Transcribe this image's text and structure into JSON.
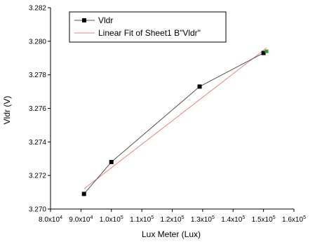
{
  "chart_data": {
    "type": "scatter",
    "xlabel": "Lux Meter (Lux)",
    "ylabel": "Vldr (V)",
    "xlim": [
      80000,
      160000
    ],
    "ylim": [
      3.27,
      3.282
    ],
    "xticks": [
      80000,
      90000,
      100000,
      110000,
      120000,
      130000,
      140000,
      150000,
      160000
    ],
    "xtick_labels": [
      {
        "mant": "8.0x10",
        "exp": "4"
      },
      {
        "mant": "9.0x10",
        "exp": "4"
      },
      {
        "mant": "1.0x10",
        "exp": "5"
      },
      {
        "mant": "1.1x10",
        "exp": "5"
      },
      {
        "mant": "1.2x10",
        "exp": "5"
      },
      {
        "mant": "1.3x10",
        "exp": "5"
      },
      {
        "mant": "1.4x10",
        "exp": "5"
      },
      {
        "mant": "1.5x10",
        "exp": "5"
      },
      {
        "mant": "1.6x10",
        "exp": "5"
      }
    ],
    "yticks": [
      3.27,
      3.272,
      3.274,
      3.276,
      3.278,
      3.28,
      3.282
    ],
    "ytick_labels": [
      "3.270",
      "3.272",
      "3.274",
      "3.276",
      "3.278",
      "3.280",
      "3.282"
    ],
    "grid": false,
    "legend_position": "top-left",
    "series": [
      {
        "name": "Vldr",
        "style": "line+markers",
        "color": "#000000",
        "line_color": "#555555",
        "marker": "square",
        "x": [
          91000,
          100000,
          129000,
          150000
        ],
        "y": [
          3.2709,
          3.2728,
          3.2773,
          3.2793
        ]
      },
      {
        "name": "Linear Fit of Sheet1 B\"Vldr\"",
        "style": "line",
        "color": "#f08080",
        "x": [
          91000,
          151000
        ],
        "y": [
          3.2712,
          3.2796
        ]
      }
    ],
    "extra_points": [
      {
        "x": 151000,
        "y": 3.2794,
        "color": "#2e9e2e"
      }
    ]
  }
}
